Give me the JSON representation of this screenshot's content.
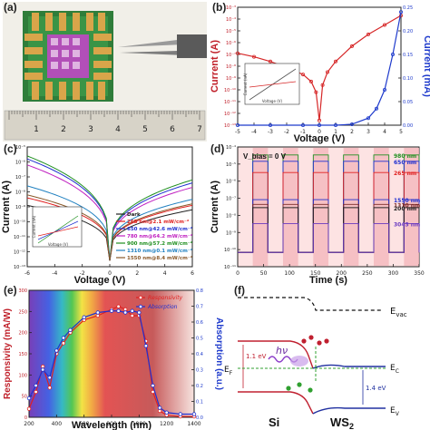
{
  "panels": {
    "a": {
      "letter": "(a)",
      "ruler_numbers": [
        "1",
        "2",
        "3",
        "4",
        "5",
        "6",
        "7"
      ]
    },
    "b": {
      "letter": "(b)"
    },
    "c": {
      "letter": "(c)"
    },
    "d": {
      "letter": "(d)"
    },
    "e": {
      "letter": "(e)"
    },
    "f": {
      "letter": "(f)"
    }
  },
  "chart_data": [
    {
      "panel": "b",
      "type": "line",
      "xlabel": "Voltage (V)",
      "ylabel": "Current (A)",
      "ylabel_right": "Current (mA)",
      "xticks": [
        "-5",
        "-4",
        "-3",
        "-2",
        "-1",
        "0",
        "1",
        "2",
        "3",
        "4",
        "5"
      ],
      "yticks_left": [
        "10⁻¹³",
        "10⁻¹²",
        "10⁻¹¹",
        "10⁻¹⁰",
        "10⁻⁹",
        "10⁻⁸",
        "10⁻⁷",
        "10⁻⁶",
        "10⁻⁵",
        "10⁻⁴",
        "10⁻³"
      ],
      "yticks_right": [
        "0.00",
        "0.05",
        "0.10",
        "0.15",
        "0.20",
        "0.25"
      ],
      "xlim": [
        -5,
        5
      ],
      "ylim_log": [
        -13,
        -3
      ],
      "ylim_right": [
        0,
        0.25
      ],
      "series": [
        {
          "axis": "left",
          "color": "#d62728",
          "x": [
            -5,
            -4,
            -3,
            -2,
            -1,
            -0.5,
            -0.2,
            0,
            0.2,
            0.5,
            1,
            2,
            3,
            4,
            5
          ],
          "y_log": [
            -6.9,
            -7.2,
            -7.6,
            -8.1,
            -8.7,
            -9.3,
            -10.2,
            -12.6,
            -9.6,
            -8.5,
            -7.6,
            -6.3,
            -5.3,
            -4.5,
            -3.7
          ]
        },
        {
          "axis": "right",
          "color": "#1f3bcc",
          "x": [
            -5,
            -3,
            -1,
            0,
            1,
            2,
            3,
            3.5,
            4,
            4.5,
            5
          ],
          "y": [
            0,
            0,
            0,
            0,
            0,
            0.002,
            0.015,
            0.035,
            0.075,
            0.15,
            0.24
          ]
        }
      ],
      "inset_xlabel": "Voltage (V)",
      "inset_ylabel": "Current (nA)"
    },
    {
      "panel": "c",
      "type": "line",
      "xlabel": "Voltage (V)",
      "ylabel": "Current (A)",
      "xticks": [
        "-6",
        "-4",
        "-2",
        "0",
        "2",
        "4",
        "6"
      ],
      "yticks": [
        "10⁻¹³",
        "10⁻¹²",
        "10⁻¹¹",
        "10⁻¹⁰",
        "10⁻⁹",
        "10⁻⁸",
        "10⁻⁷",
        "10⁻⁶",
        "10⁻⁵"
      ],
      "xlim": [
        -6,
        6
      ],
      "ylim_log": [
        -13,
        -5
      ],
      "legend_position": "lower-right",
      "series": [
        {
          "name": "Dark",
          "color": "#222222",
          "y_neg": -8.9,
          "y_pos": -9.2
        },
        {
          "name": "265 nm@2.1 mW/cm⁻²",
          "color": "#e02020",
          "y_neg": -8.4,
          "y_pos": -8.9
        },
        {
          "name": "650 nm@42.6 mW/cm⁻²",
          "color": "#2030d0",
          "y_neg": -5.8,
          "y_pos": -7.4
        },
        {
          "name": "780 nm@64.2 mW/cm⁻²",
          "color": "#c020c0",
          "y_neg": -6.2,
          "y_pos": -7.7
        },
        {
          "name": "900 nm@57.2 mW/cm⁻²",
          "color": "#209020",
          "y_neg": -5.6,
          "y_pos": -7.2
        },
        {
          "name": "1310 nm@0.1 mW/cm⁻²",
          "color": "#2080c0",
          "y_neg": -7.6,
          "y_pos": -8.5
        },
        {
          "name": "1550 nm@8.4 mW/cm⁻²",
          "color": "#8a5a2a",
          "y_neg": -8.2,
          "y_pos": -8.8
        }
      ],
      "inset_xlabel": "Voltage (V)",
      "inset_ylabel": "Current (nA)"
    },
    {
      "panel": "d",
      "type": "line",
      "xlabel": "Time (s)",
      "ylabel": "Current (A)",
      "annotation": "V_bias = 0 V",
      "xticks": [
        "0",
        "50",
        "100",
        "150",
        "200",
        "250",
        "300",
        "350"
      ],
      "yticks": [
        "10⁻¹¹",
        "10⁻¹⁰",
        "10⁻⁹",
        "10⁻⁸",
        "10⁻⁷",
        "10⁻⁶",
        "10⁻⁵",
        "10⁻⁴"
      ],
      "xlim": [
        0,
        360
      ],
      "ylim_log": [
        -11.5,
        -4
      ],
      "on_intervals": [
        [
          30,
          60
        ],
        [
          90,
          120
        ],
        [
          150,
          180
        ],
        [
          210,
          240
        ],
        [
          270,
          300
        ],
        [
          330,
          360
        ]
      ],
      "off_level_log": -10.6,
      "series": [
        {
          "name": "980 nm",
          "color": "#209020",
          "on_log": -4.5
        },
        {
          "name": "650 nm",
          "color": "#2030d0",
          "on_log": -4.9
        },
        {
          "name": "265 nm",
          "color": "#e02020",
          "on_log": -5.6
        },
        {
          "name": "1550 nm",
          "color": "#2030d0",
          "on_log": -7.3
        },
        {
          "name": "1310 nm",
          "color": "#7a2a2a",
          "on_log": -7.6
        },
        {
          "name": "200 nm",
          "color": "#222222",
          "on_log": -7.8
        },
        {
          "name": "3043 nm",
          "color": "#6a3ac0",
          "on_log": -8.8
        }
      ]
    },
    {
      "panel": "e",
      "type": "line",
      "xlabel": "Wavelength (nm)",
      "ylabel": "Responsivity (mA/W)",
      "ylabel_right": "Absorption (a.u.)",
      "xticks": [
        "200",
        "400",
        "600",
        "800",
        "1000",
        "1200",
        "1400"
      ],
      "yticks_left": [
        "0",
        "50",
        "100",
        "150",
        "200",
        "250",
        "300"
      ],
      "yticks_right": [
        "0.0",
        "0.1",
        "0.2",
        "0.3",
        "0.4",
        "0.5",
        "0.6",
        "0.7",
        "0.8"
      ],
      "xlim": [
        200,
        1400
      ],
      "ylim": [
        0,
        300
      ],
      "ylim_right": [
        0,
        0.8
      ],
      "legend_position": "top-right",
      "series": [
        {
          "name": "Responsivity",
          "axis": "left",
          "color": "#e02020",
          "x": [
            200,
            250,
            300,
            350,
            400,
            450,
            500,
            600,
            700,
            800,
            850,
            900,
            950,
            1000,
            1050,
            1100,
            1150,
            1200,
            1300,
            1400
          ],
          "y": [
            20,
            60,
            120,
            70,
            150,
            175,
            200,
            230,
            240,
            255,
            262,
            255,
            240,
            240,
            180,
            60,
            15,
            5,
            2,
            2
          ]
        },
        {
          "name": "Absorption",
          "axis": "right",
          "color": "#2030d0",
          "x": [
            200,
            250,
            300,
            350,
            400,
            450,
            500,
            600,
            700,
            800,
            850,
            900,
            950,
            1000,
            1050,
            1100,
            1150,
            1200,
            1300,
            1400
          ],
          "y": [
            0.12,
            0.2,
            0.3,
            0.25,
            0.42,
            0.5,
            0.55,
            0.63,
            0.66,
            0.67,
            0.67,
            0.66,
            0.67,
            0.66,
            0.45,
            0.2,
            0.06,
            0.03,
            0.02,
            0.02
          ]
        }
      ]
    }
  ],
  "band_diagram": {
    "labels": {
      "evac": "E",
      "evac_sub": "vac",
      "ef": "E",
      "ef_sub": "F",
      "ec": "E",
      "ec_sub": "C",
      "ev": "E",
      "ev_sub": "V",
      "si": "Si",
      "ws2": "WS",
      "ws2_sub": "2",
      "gap_si": "1.1 eV",
      "gap_ws2": "1.4 eV",
      "hv": "hν"
    }
  }
}
